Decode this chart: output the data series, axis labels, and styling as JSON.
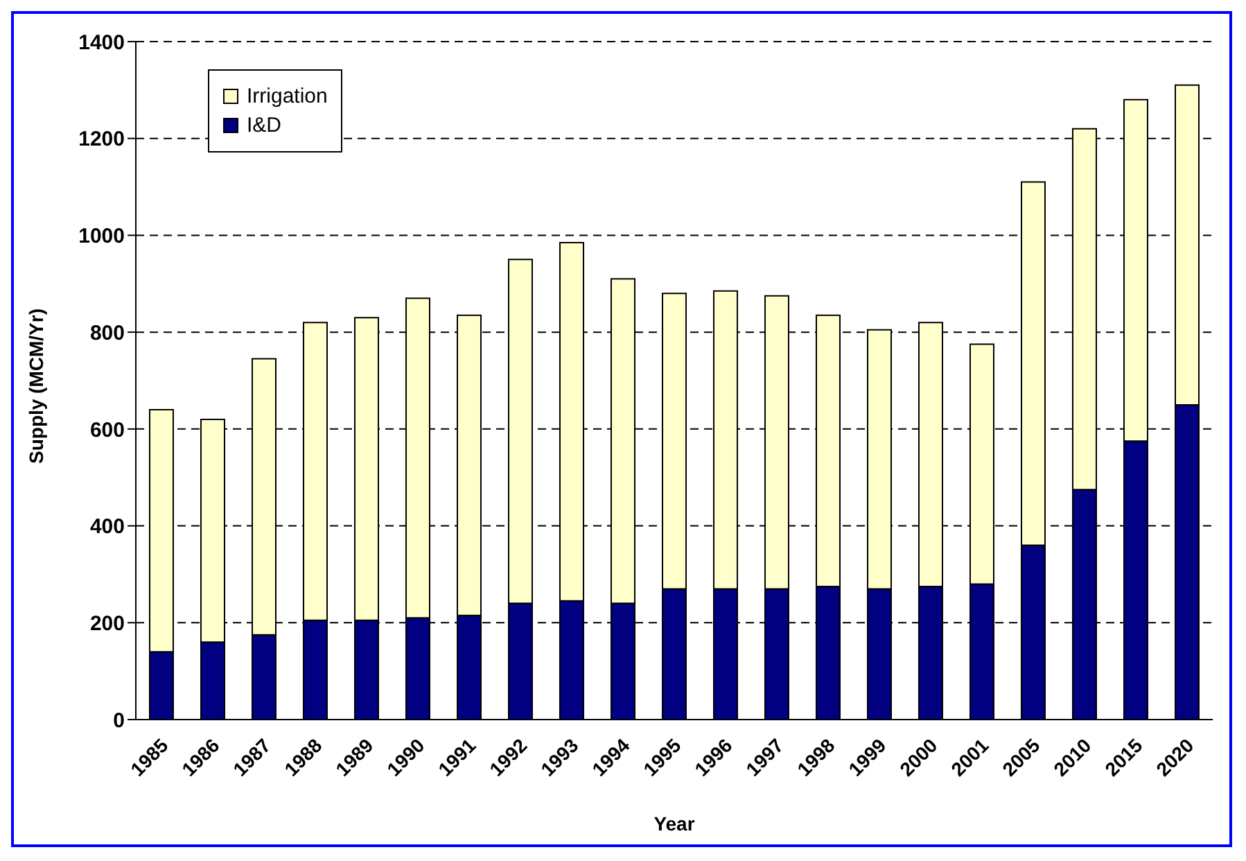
{
  "chart_data": {
    "type": "bar",
    "stacked": true,
    "xlabel": "Year",
    "ylabel": "Supply (MCM/Yr)",
    "categories": [
      "1985",
      "1986",
      "1987",
      "1988",
      "1989",
      "1990",
      "1991",
      "1992",
      "1993",
      "1994",
      "1995",
      "1996",
      "1997",
      "1998",
      "1999",
      "2000",
      "2001",
      "2005",
      "2010",
      "2015",
      "2020"
    ],
    "series": [
      {
        "name": "I&D",
        "color": "#000080",
        "values": [
          140,
          160,
          175,
          205,
          205,
          210,
          215,
          240,
          245,
          240,
          270,
          270,
          270,
          275,
          270,
          275,
          280,
          360,
          475,
          575,
          650
        ]
      },
      {
        "name": "Irrigation",
        "color": "#ffffcc",
        "values": [
          500,
          460,
          570,
          615,
          625,
          660,
          620,
          710,
          740,
          670,
          610,
          615,
          605,
          560,
          535,
          545,
          495,
          750,
          745,
          705,
          660
        ]
      }
    ],
    "ylim": [
      0,
      1400
    ],
    "yticks": [
      0,
      200,
      400,
      600,
      800,
      1000,
      1200,
      1400
    ],
    "grid": "y",
    "legend": "top left"
  }
}
